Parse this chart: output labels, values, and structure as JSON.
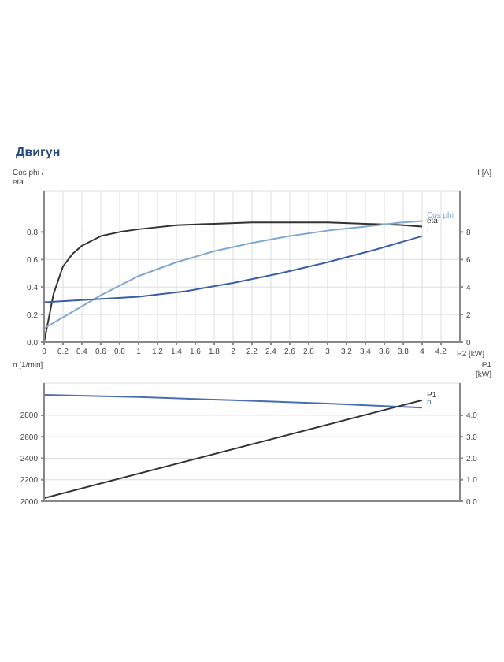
{
  "chart_data": [
    {
      "type": "line",
      "title": "Двигун",
      "xlabel": "P2 [kW]",
      "ylabel": "Cos phi / eta",
      "y2label": "I [A]",
      "xlim": [
        0,
        4.4
      ],
      "xticks": [
        0,
        0.2,
        0.4,
        0.6,
        0.8,
        1.0,
        1.2,
        1.4,
        1.6,
        1.8,
        2.0,
        2.2,
        2.4,
        2.6,
        2.8,
        3.0,
        3.2,
        3.4,
        3.6,
        3.8,
        4.0,
        4.2
      ],
      "ylim": [
        0,
        1.1
      ],
      "yticks": [
        {
          "value": 0,
          "label": "0.0"
        },
        0.2,
        0.4,
        0.6,
        0.8
      ],
      "y2lim": [
        0,
        11
      ],
      "y2ticks": [
        0,
        2,
        4,
        6,
        8
      ],
      "grid": true,
      "legend": false,
      "marker": "none",
      "line_style": "solid",
      "series": [
        {
          "name": "eta",
          "color": "#333333",
          "x": [
            0,
            0.1,
            0.2,
            0.3,
            0.4,
            0.6,
            0.8,
            1.0,
            1.4,
            1.8,
            2.2,
            2.6,
            3.0,
            3.4,
            3.8,
            4.0
          ],
          "values": [
            0,
            0.35,
            0.55,
            0.64,
            0.7,
            0.77,
            0.8,
            0.82,
            0.85,
            0.86,
            0.87,
            0.87,
            0.87,
            0.86,
            0.85,
            0.84
          ]
        },
        {
          "name": "Cos phi",
          "color": "#7fa8d0",
          "x": [
            0,
            0.2,
            0.4,
            0.6,
            0.8,
            1.0,
            1.4,
            1.8,
            2.2,
            2.6,
            3.0,
            3.4,
            3.8,
            4.0
          ],
          "values": [
            0.1,
            0.18,
            0.26,
            0.34,
            0.41,
            0.48,
            0.58,
            0.66,
            0.72,
            0.77,
            0.81,
            0.84,
            0.87,
            0.88
          ]
        },
        {
          "name": "I",
          "color": "#3b5ea6",
          "axis": "y2",
          "x": [
            0,
            0.5,
            1.0,
            1.5,
            2.0,
            2.5,
            3.0,
            3.5,
            4.0
          ],
          "values": [
            2.9,
            3.1,
            3.3,
            3.7,
            4.3,
            5.0,
            5.8,
            6.7,
            7.7
          ]
        }
      ]
    },
    {
      "type": "line",
      "ylabel": "n [1/min]",
      "y2label": "P1 [kW]",
      "tick_labels": "y",
      "xlim": [
        0,
        4.4
      ],
      "xticks": [
        0,
        0.2,
        0.4,
        0.6,
        0.8,
        1.0,
        1.2,
        1.4,
        1.6,
        1.8,
        2.0,
        2.2,
        2.4,
        2.6,
        2.8,
        3.0,
        3.2,
        3.4,
        3.6,
        3.8,
        4.0,
        4.2
      ],
      "ylim": [
        2000,
        3100
      ],
      "yticks": [
        2000,
        2200,
        2400,
        2600,
        2800
      ],
      "y2lim": [
        0,
        5.5
      ],
      "y2ticks": [
        {
          "value": 0,
          "label": "0.0"
        },
        {
          "value": 1,
          "label": "1.0"
        },
        {
          "value": 2,
          "label": "2.0"
        },
        {
          "value": 3,
          "label": "3.0"
        },
        {
          "value": 4,
          "label": "4.0"
        }
      ],
      "grid": true,
      "legend": false,
      "marker": "none",
      "line_style": "solid",
      "series": [
        {
          "name": "n",
          "color": "#4a6fb0",
          "x": [
            0,
            1,
            2,
            3,
            4
          ],
          "values": [
            2990,
            2970,
            2940,
            2910,
            2870
          ]
        },
        {
          "name": "P1",
          "color": "#333333",
          "axis": "y2",
          "x": [
            0,
            4.0
          ],
          "values": [
            0.15,
            4.7
          ]
        }
      ]
    }
  ]
}
